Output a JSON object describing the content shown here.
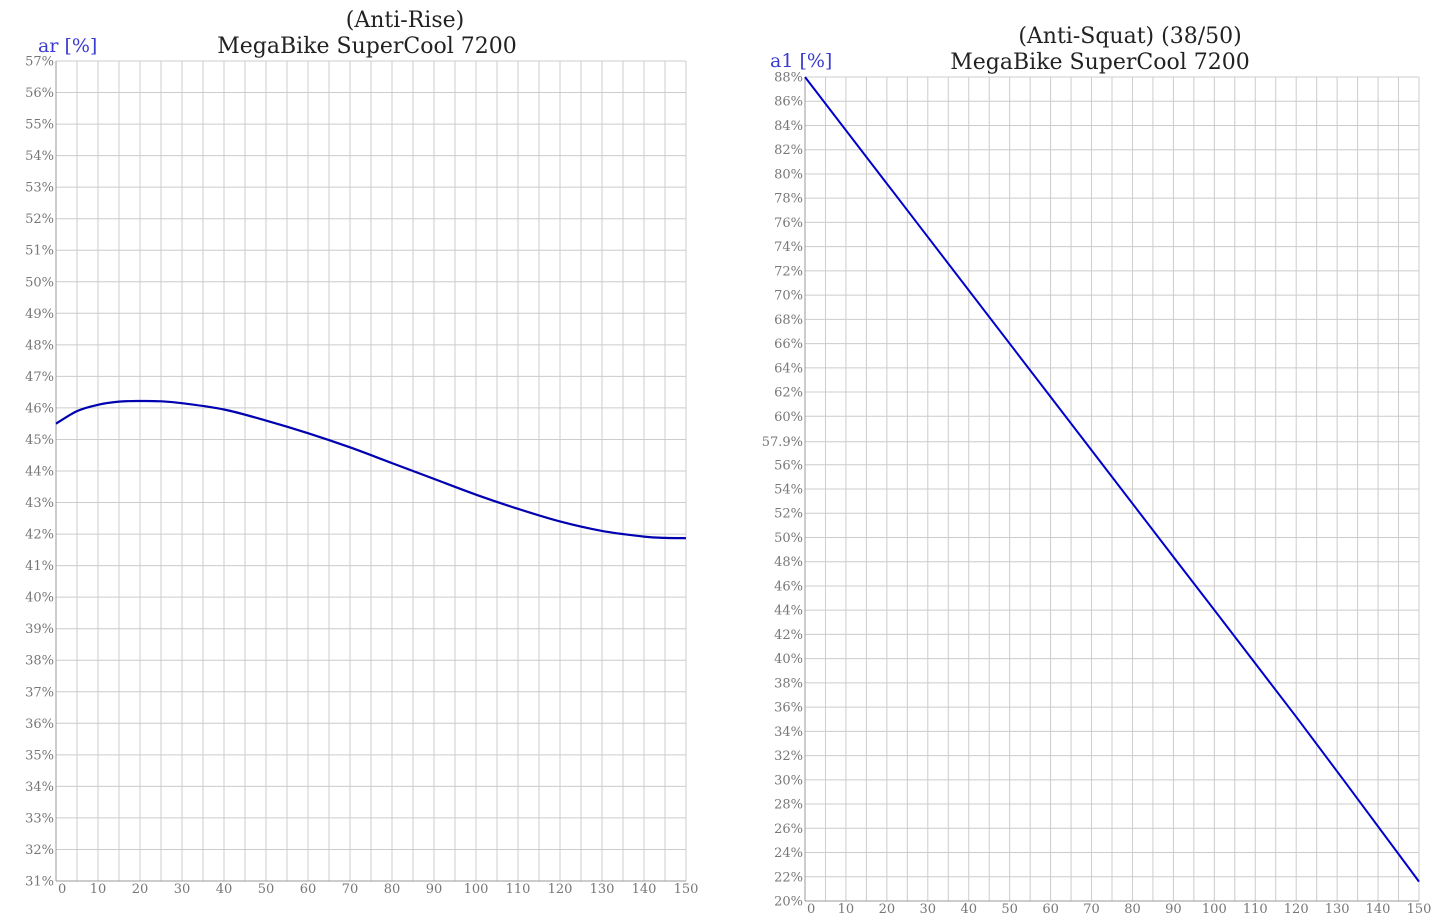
{
  "chart_data": [
    {
      "type": "line",
      "title": "(Anti-Rise)",
      "subtitle": "MegaBike SuperCool 7200",
      "ylabel": "ar [%]",
      "xlabel": "",
      "xlim": [
        0,
        150
      ],
      "ylim": [
        31,
        57
      ],
      "grid": true,
      "x_ticks": [
        0,
        10,
        20,
        30,
        40,
        50,
        60,
        70,
        80,
        90,
        100,
        110,
        120,
        130,
        140,
        150
      ],
      "y_ticks": [
        31,
        32,
        33,
        34,
        35,
        36,
        37,
        38,
        39,
        40,
        41,
        42,
        43,
        44,
        45,
        46,
        47,
        48,
        49,
        50,
        51,
        52,
        53,
        54,
        55,
        56,
        57
      ],
      "y_tick_labels": [
        "31%",
        "32%",
        "33%",
        "34%",
        "35%",
        "36%",
        "37%",
        "38%",
        "39%",
        "40%",
        "41%",
        "42%",
        "43%",
        "44%",
        "45%",
        "46%",
        "47%",
        "48%",
        "49%",
        "50%",
        "51%",
        "52%",
        "53%",
        "54%",
        "55%",
        "56%",
        "57%"
      ],
      "line_color": "#0000b0",
      "x": [
        0,
        5,
        10,
        15,
        20,
        25,
        30,
        40,
        50,
        60,
        70,
        80,
        90,
        100,
        110,
        120,
        130,
        140,
        145,
        150
      ],
      "y": [
        45.5,
        45.9,
        46.1,
        46.2,
        46.22,
        46.21,
        46.15,
        45.95,
        45.6,
        45.2,
        44.75,
        44.25,
        43.75,
        43.25,
        42.8,
        42.4,
        42.1,
        41.92,
        41.88,
        41.87
      ]
    },
    {
      "type": "line",
      "title": "(Anti-Squat)  (38/50)",
      "subtitle": "MegaBike SuperCool 7200",
      "ylabel": "a1 [%]",
      "xlabel": "",
      "xlim": [
        0,
        150
      ],
      "ylim": [
        20,
        88
      ],
      "grid": true,
      "x_ticks": [
        0,
        10,
        20,
        30,
        40,
        50,
        60,
        70,
        80,
        90,
        100,
        110,
        120,
        130,
        140,
        150
      ],
      "y_ticks": [
        20,
        22,
        24,
        26,
        28,
        30,
        32,
        34,
        36,
        38,
        40,
        42,
        44,
        46,
        48,
        50,
        52,
        54,
        56,
        57.9,
        60,
        62,
        64,
        66,
        68,
        70,
        72,
        74,
        76,
        78,
        80,
        82,
        84,
        86,
        88
      ],
      "y_tick_labels": [
        "20%",
        "22%",
        "24%",
        "26%",
        "28%",
        "30%",
        "32%",
        "34%",
        "36%",
        "38%",
        "40%",
        "42%",
        "44%",
        "46%",
        "48%",
        "50%",
        "52%",
        "54%",
        "56%",
        "57.9%",
        "60%",
        "62%",
        "64%",
        "66%",
        "68%",
        "70%",
        "72%",
        "74%",
        "76%",
        "78%",
        "80%",
        "82%",
        "84%",
        "86%",
        "88%"
      ],
      "line_color": "#0000cc",
      "x": [
        0,
        30,
        60,
        90,
        120,
        150
      ],
      "y": [
        88,
        74.8,
        61.6,
        48.4,
        35.2,
        21.6
      ]
    }
  ]
}
